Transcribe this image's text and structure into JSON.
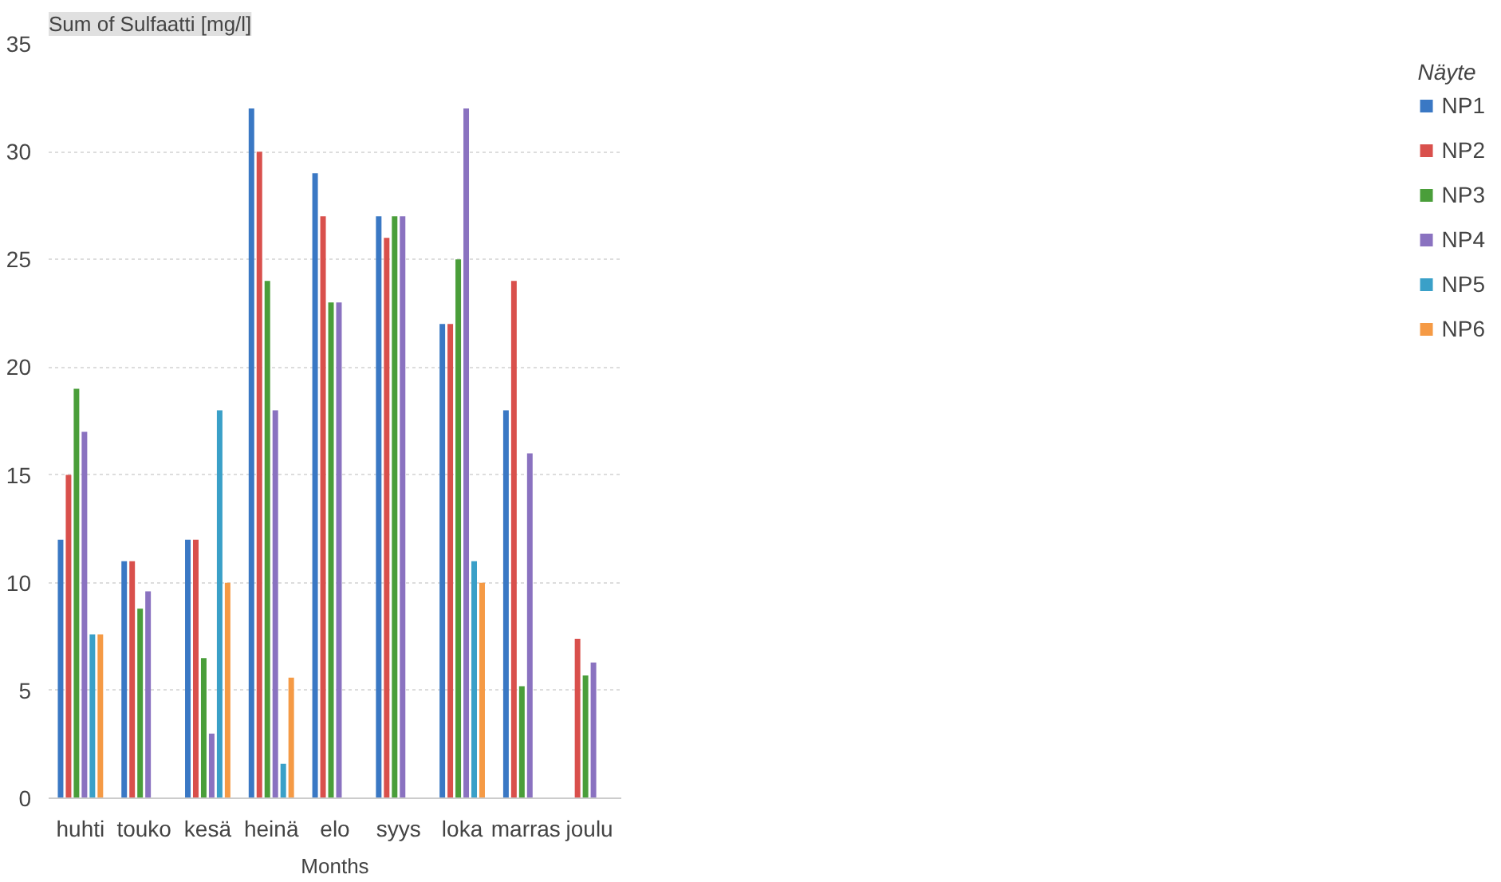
{
  "chart_data": {
    "type": "bar",
    "ylabel": "Sum of Sulfaatti [mg/l]",
    "xlabel": "Months",
    "legend_title": "Näyte",
    "categories": [
      "huhti",
      "touko",
      "kesä",
      "heinä",
      "elo",
      "syys",
      "loka",
      "marras",
      "joulu"
    ],
    "series": [
      {
        "name": "NP1",
        "color": "#3a78c4",
        "values": [
          12,
          11,
          12,
          32,
          29,
          27,
          22,
          18,
          null
        ]
      },
      {
        "name": "NP2",
        "color": "#d9504c",
        "values": [
          15,
          11,
          12,
          30,
          27,
          26,
          22,
          24,
          7.4
        ]
      },
      {
        "name": "NP3",
        "color": "#4a9e3a",
        "values": [
          19,
          8.8,
          6.5,
          24,
          23,
          27,
          25,
          5.2,
          5.7
        ]
      },
      {
        "name": "NP4",
        "color": "#8a72c0",
        "values": [
          17,
          9.6,
          3,
          18,
          23,
          27,
          32,
          16,
          6.3
        ]
      },
      {
        "name": "NP5",
        "color": "#3aa0c8",
        "values": [
          7.6,
          null,
          18,
          1.6,
          null,
          null,
          11,
          null,
          null
        ]
      },
      {
        "name": "NP6",
        "color": "#f59a45",
        "values": [
          7.6,
          null,
          10,
          5.6,
          null,
          null,
          10,
          null,
          null
        ]
      }
    ],
    "ylim": [
      0,
      35
    ],
    "yticks": [
      0,
      5,
      10,
      15,
      20,
      25,
      30,
      35
    ],
    "grid": "y",
    "legend": "right"
  }
}
